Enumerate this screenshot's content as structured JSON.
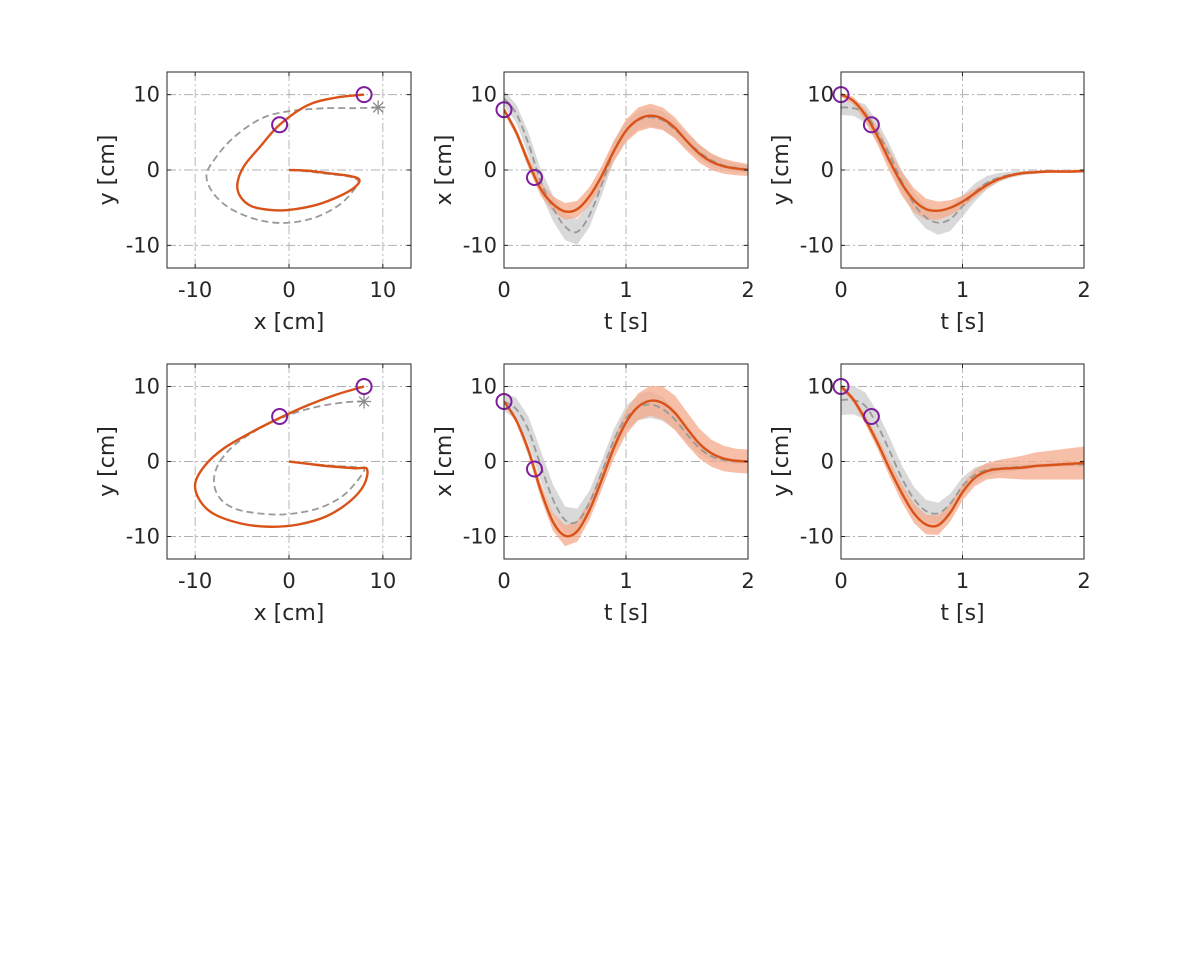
{
  "colors": {
    "model": "#D95319",
    "model_band": "#F4A98A",
    "demo": "#999999",
    "demo_band": "#D0D0D0",
    "via_point": "#7E1E9C",
    "goal_marker": "#8C8C8C",
    "axes": "#262626"
  },
  "chart_data": [
    {
      "type": "line",
      "row": 1,
      "col": 1,
      "xlabel": "x [cm]",
      "ylabel": "y [cm]",
      "xlim": [
        -13,
        13
      ],
      "ylim": [
        -13,
        13
      ],
      "xticks": [
        -10,
        0,
        10
      ],
      "yticks": [
        -10,
        0,
        10
      ],
      "xtick_labels": [
        "-10",
        "0",
        "10"
      ],
      "ytick_labels": [
        "-10",
        "0",
        "10"
      ],
      "grid": true,
      "series": [
        {
          "role": "demo",
          "style": "dashed",
          "x": [
            9.5,
            7,
            4,
            0,
            -3,
            -6,
            -8,
            -8.8,
            -8,
            -6,
            -3,
            0,
            3,
            5.5,
            7,
            7.4,
            6.5,
            4,
            2,
            0
          ],
          "y": [
            8.3,
            8.2,
            8.2,
            7.8,
            6.8,
            4.2,
            1.3,
            -0.8,
            -3.2,
            -5.3,
            -6.7,
            -7,
            -6.2,
            -4.5,
            -2.5,
            -1.5,
            -0.9,
            -0.5,
            -0.2,
            0
          ]
        },
        {
          "role": "model",
          "style": "solid",
          "x": [
            8,
            5,
            2,
            -1,
            -3,
            -4.8,
            -5.5,
            -5.2,
            -4,
            -2,
            0,
            3,
            5.5,
            7,
            7.5,
            6.5,
            4,
            2,
            0
          ],
          "y": [
            10,
            9.6,
            8.6,
            6,
            3.2,
            0.5,
            -1.8,
            -3.5,
            -4.8,
            -5.3,
            -5.3,
            -4.6,
            -3.4,
            -2.3,
            -1.3,
            -0.8,
            -0.4,
            -0.1,
            0
          ]
        }
      ],
      "via_points": {
        "x": [
          8,
          -1
        ],
        "y": [
          10,
          6
        ]
      },
      "goal_marker": {
        "x": [
          9.5
        ],
        "y": [
          8.3
        ]
      }
    },
    {
      "type": "line",
      "row": 1,
      "col": 2,
      "xlabel": "t [s]",
      "ylabel": "x [cm]",
      "xlim": [
        0,
        2
      ],
      "ylim": [
        -13,
        13
      ],
      "xticks": [
        0,
        1,
        2
      ],
      "yticks": [
        -10,
        0,
        10
      ],
      "xtick_labels": [
        "0",
        "1",
        "2"
      ],
      "ytick_labels": [
        "-10",
        "0",
        "10"
      ],
      "grid": true,
      "series": [
        {
          "role": "demo",
          "style": "dashed",
          "x": [
            0,
            0.1,
            0.2,
            0.3,
            0.4,
            0.5,
            0.6,
            0.7,
            0.8,
            0.9,
            1.0,
            1.1,
            1.2,
            1.3,
            1.4,
            1.5,
            1.6,
            1.7,
            1.8,
            1.9,
            2.0
          ],
          "y": [
            9.5,
            7.5,
            3.5,
            -1.5,
            -5,
            -7.5,
            -8.2,
            -6,
            -2,
            2.5,
            5.2,
            6.6,
            7.0,
            6.6,
            5.4,
            3.8,
            2.4,
            1.3,
            0.6,
            0.3,
            0.1
          ],
          "band_halfwidth": [
            1,
            1.2,
            1.5,
            1.6,
            1.7,
            1.8,
            1.7,
            1.6,
            1.4,
            1.3,
            1.2,
            1.2,
            1.2,
            1.2,
            1.1,
            1.0,
            0.9,
            0.8,
            0.7,
            0.6,
            0.5
          ]
        },
        {
          "role": "model",
          "style": "solid",
          "x": [
            0,
            0.1,
            0.2,
            0.3,
            0.4,
            0.5,
            0.6,
            0.7,
            0.8,
            0.9,
            1.0,
            1.1,
            1.2,
            1.3,
            1.4,
            1.5,
            1.6,
            1.7,
            1.8,
            1.9,
            2.0
          ],
          "y": [
            8,
            5,
            1,
            -2.5,
            -4.5,
            -5.5,
            -5.2,
            -3.5,
            -0.8,
            2.5,
            5.2,
            6.7,
            7.2,
            6.8,
            5.6,
            3.8,
            2.2,
            1.1,
            0.5,
            0.2,
            0
          ],
          "band_halfwidth": [
            0.4,
            0.5,
            0.7,
            0.9,
            1.0,
            1.1,
            1.1,
            1.2,
            1.3,
            1.4,
            1.5,
            1.6,
            1.6,
            1.5,
            1.4,
            1.3,
            1.2,
            1.1,
            1.0,
            0.9,
            0.8
          ]
        }
      ],
      "via_points": {
        "x": [
          0,
          0.25
        ],
        "y": [
          8,
          -1
        ]
      }
    },
    {
      "type": "line",
      "row": 1,
      "col": 3,
      "xlabel": "t [s]",
      "ylabel": "y [cm]",
      "xlim": [
        0,
        2
      ],
      "ylim": [
        -13,
        13
      ],
      "xticks": [
        0,
        1,
        2
      ],
      "yticks": [
        -10,
        0,
        10
      ],
      "xtick_labels": [
        "0",
        "1",
        "2"
      ],
      "ytick_labels": [
        "-10",
        "0",
        "10"
      ],
      "grid": true,
      "series": [
        {
          "role": "demo",
          "style": "dashed",
          "x": [
            0,
            0.1,
            0.2,
            0.3,
            0.4,
            0.5,
            0.6,
            0.7,
            0.8,
            0.9,
            1.0,
            1.1,
            1.2,
            1.3,
            1.4,
            1.5,
            1.6,
            1.7,
            1.8,
            1.9,
            2.0
          ],
          "y": [
            8.3,
            8.2,
            7.5,
            5,
            2,
            -1.5,
            -4.5,
            -6.3,
            -7,
            -6.5,
            -4.8,
            -3,
            -1.7,
            -1,
            -0.6,
            -0.4,
            -0.3,
            -0.2,
            -0.2,
            -0.2,
            -0.2
          ],
          "band_halfwidth": [
            1,
            1,
            1.2,
            1.4,
            1.4,
            1.4,
            1.5,
            1.5,
            1.6,
            1.6,
            1.4,
            1.2,
            0.9,
            0.6,
            0.4,
            0.3,
            0.2,
            0.2,
            0.2,
            0.2,
            0.2
          ]
        },
        {
          "role": "model",
          "style": "solid",
          "x": [
            0,
            0.1,
            0.2,
            0.3,
            0.4,
            0.5,
            0.6,
            0.7,
            0.8,
            0.9,
            1.0,
            1.1,
            1.2,
            1.3,
            1.4,
            1.5,
            1.6,
            1.7,
            1.8,
            1.9,
            2.0
          ],
          "y": [
            10,
            9.2,
            7.3,
            4.5,
            1.2,
            -1.8,
            -4,
            -5.2,
            -5.4,
            -5,
            -4.2,
            -3.1,
            -2,
            -1.2,
            -0.7,
            -0.4,
            -0.3,
            -0.2,
            -0.2,
            -0.2,
            -0.1
          ],
          "band_halfwidth": [
            0.3,
            0.5,
            0.8,
            1.1,
            1.4,
            1.6,
            1.6,
            1.4,
            1.2,
            1.0,
            0.8,
            0.6,
            0.4,
            0.3,
            0.2,
            0.2,
            0.2,
            0.2,
            0.2,
            0.2,
            0.2
          ]
        }
      ],
      "via_points": {
        "x": [
          0,
          0.25
        ],
        "y": [
          10,
          6
        ]
      }
    },
    {
      "type": "line",
      "row": 2,
      "col": 1,
      "xlabel": "x [cm]",
      "ylabel": "y [cm]",
      "xlim": [
        -13,
        13
      ],
      "ylim": [
        -13,
        13
      ],
      "xticks": [
        -10,
        0,
        10
      ],
      "yticks": [
        -10,
        0,
        10
      ],
      "xtick_labels": [
        "-10",
        "0",
        "10"
      ],
      "ytick_labels": [
        "-10",
        "0",
        "10"
      ],
      "grid": true,
      "series": [
        {
          "role": "demo",
          "style": "dashed",
          "x": [
            8,
            6,
            3,
            0,
            -3,
            -5.8,
            -7.5,
            -8,
            -7.3,
            -5.5,
            -2.5,
            0,
            3,
            5.5,
            7,
            8,
            7.5,
            5,
            2,
            0
          ],
          "y": [
            8,
            7.9,
            7.3,
            6.2,
            4.5,
            2.2,
            -0.3,
            -2.8,
            -5,
            -6.4,
            -7,
            -7,
            -6.3,
            -4.8,
            -3,
            -1.2,
            -0.8,
            -0.6,
            -0.3,
            0
          ]
        },
        {
          "role": "model",
          "style": "solid",
          "x": [
            8,
            5,
            2,
            -1,
            -4,
            -7,
            -9,
            -10,
            -9.5,
            -8,
            -5,
            -2,
            1,
            4,
            6.5,
            8,
            8.3,
            7,
            4,
            2,
            0
          ],
          "y": [
            10,
            8.9,
            7.5,
            5.8,
            3.9,
            1.7,
            -0.6,
            -3,
            -5.2,
            -7,
            -8.3,
            -8.7,
            -8.4,
            -7.3,
            -5.3,
            -3.1,
            -1,
            -0.9,
            -0.6,
            -0.3,
            0
          ]
        }
      ],
      "via_points": {
        "x": [
          8,
          -1
        ],
        "y": [
          10,
          6
        ]
      },
      "goal_marker": {
        "x": [
          8
        ],
        "y": [
          8
        ]
      }
    },
    {
      "type": "line",
      "row": 2,
      "col": 2,
      "xlabel": "t [s]",
      "ylabel": "x [cm]",
      "xlim": [
        0,
        2
      ],
      "ylim": [
        -13,
        13
      ],
      "xticks": [
        0,
        1,
        2
      ],
      "yticks": [
        -10,
        0,
        10
      ],
      "xtick_labels": [
        "0",
        "1",
        "2"
      ],
      "ytick_labels": [
        "-10",
        "0",
        "10"
      ],
      "grid": true,
      "series": [
        {
          "role": "demo",
          "style": "dashed",
          "x": [
            0,
            0.1,
            0.2,
            0.3,
            0.4,
            0.5,
            0.6,
            0.7,
            0.8,
            0.9,
            1.0,
            1.1,
            1.2,
            1.3,
            1.4,
            1.5,
            1.6,
            1.7,
            1.8,
            1.9,
            2.0
          ],
          "y": [
            8,
            7,
            4.2,
            -0.5,
            -5,
            -7.8,
            -8,
            -5.5,
            -1.5,
            2.8,
            5.8,
            7.2,
            7.6,
            7.0,
            5.6,
            3.6,
            1.8,
            0.7,
            0.2,
            0,
            0
          ],
          "band_halfwidth": [
            1.2,
            1.5,
            1.8,
            2.0,
            2.0,
            1.8,
            1.7,
            1.6,
            1.5,
            1.5,
            1.6,
            1.7,
            1.8,
            1.6,
            1.3,
            1.0,
            0.8,
            0.6,
            0.4,
            0.3,
            0.2
          ]
        },
        {
          "role": "model",
          "style": "solid",
          "x": [
            0,
            0.1,
            0.2,
            0.3,
            0.4,
            0.5,
            0.6,
            0.7,
            0.8,
            0.9,
            1.0,
            1.1,
            1.2,
            1.3,
            1.4,
            1.5,
            1.6,
            1.7,
            1.8,
            1.9,
            2.0
          ],
          "y": [
            8,
            5.5,
            1.5,
            -3.8,
            -8,
            -9.9,
            -9.3,
            -6.5,
            -2.5,
            1.8,
            5.2,
            7.3,
            8.1,
            7.8,
            6.5,
            4.4,
            2.4,
            1.1,
            0.4,
            0.1,
            0
          ],
          "band_halfwidth": [
            0.2,
            0.4,
            0.7,
            1.0,
            1.2,
            1.4,
            1.4,
            1.3,
            1.3,
            1.4,
            1.6,
            1.8,
            2.0,
            2.2,
            2.3,
            2.2,
            2.0,
            1.8,
            1.7,
            1.6,
            1.6
          ]
        }
      ],
      "via_points": {
        "x": [
          0,
          0.25
        ],
        "y": [
          8,
          -1
        ]
      }
    },
    {
      "type": "line",
      "row": 2,
      "col": 3,
      "xlabel": "t [s]",
      "ylabel": "y [cm]",
      "xlim": [
        0,
        2
      ],
      "ylim": [
        -13,
        13
      ],
      "xticks": [
        0,
        1,
        2
      ],
      "yticks": [
        -10,
        0,
        10
      ],
      "xtick_labels": [
        "0",
        "1",
        "2"
      ],
      "ytick_labels": [
        "-10",
        "0",
        "10"
      ],
      "grid": true,
      "series": [
        {
          "role": "demo",
          "style": "dashed",
          "x": [
            0,
            0.1,
            0.2,
            0.3,
            0.4,
            0.5,
            0.6,
            0.7,
            0.8,
            0.9,
            1.0,
            1.1,
            1.2,
            1.3,
            1.4,
            1.5,
            1.6,
            1.7,
            1.8,
            1.9,
            2.0
          ],
          "y": [
            8.2,
            8.2,
            7.4,
            4.8,
            1.4,
            -2.2,
            -5,
            -6.6,
            -6.9,
            -5.6,
            -3.3,
            -1.8,
            -1.1,
            -0.9,
            -0.8,
            -0.7,
            -0.6,
            -0.5,
            -0.4,
            -0.4,
            -0.4
          ],
          "band_halfwidth": [
            2.0,
            1.9,
            1.8,
            1.8,
            1.8,
            1.7,
            1.6,
            1.5,
            1.4,
            1.3,
            1.2,
            1.0,
            0.8,
            0.6,
            0.5,
            0.4,
            0.3,
            0.3,
            0.3,
            0.3,
            0.3
          ]
        },
        {
          "role": "model",
          "style": "solid",
          "x": [
            0,
            0.1,
            0.2,
            0.3,
            0.4,
            0.5,
            0.6,
            0.7,
            0.8,
            0.9,
            1.0,
            1.1,
            1.2,
            1.3,
            1.4,
            1.5,
            1.6,
            1.7,
            1.8,
            1.9,
            2.0
          ],
          "y": [
            10,
            8.3,
            5.6,
            2.5,
            -1,
            -4.2,
            -6.9,
            -8.4,
            -8.5,
            -6.8,
            -4.1,
            -2.2,
            -1.3,
            -1,
            -0.9,
            -0.8,
            -0.6,
            -0.5,
            -0.4,
            -0.3,
            -0.2
          ],
          "band_halfwidth": [
            0.3,
            0.4,
            0.6,
            0.8,
            1.0,
            1.2,
            1.3,
            1.3,
            1.3,
            1.2,
            1.1,
            1.1,
            1.1,
            1.2,
            1.4,
            1.6,
            1.8,
            1.9,
            2.0,
            2.1,
            2.2
          ]
        }
      ],
      "via_points": {
        "x": [
          0,
          0.25
        ],
        "y": [
          10,
          6
        ]
      }
    }
  ]
}
